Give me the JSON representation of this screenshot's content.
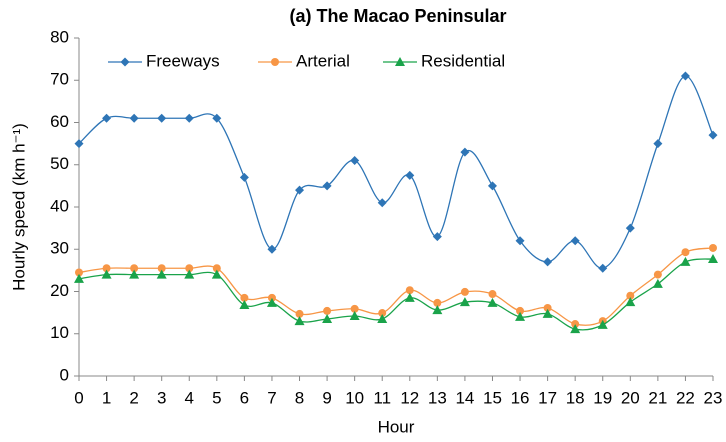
{
  "chart_data": {
    "type": "line",
    "title": "(a) The Macao Peninsular",
    "x_label": "Hour",
    "y_label": "Hourly speed (km h⁻¹)",
    "x": [
      0,
      1,
      2,
      3,
      4,
      5,
      6,
      7,
      8,
      9,
      10,
      11,
      12,
      13,
      14,
      15,
      16,
      17,
      18,
      19,
      20,
      21,
      22,
      23
    ],
    "xlim": [
      0,
      23
    ],
    "xticks": [
      0,
      1,
      2,
      3,
      4,
      5,
      6,
      7,
      8,
      9,
      10,
      11,
      12,
      13,
      14,
      15,
      16,
      17,
      18,
      19,
      20,
      21,
      22,
      23
    ],
    "ylim": [
      0,
      80
    ],
    "yticks": [
      0,
      10,
      20,
      30,
      40,
      50,
      60,
      70,
      80
    ],
    "smooth": true,
    "legend": "top",
    "series": [
      {
        "name": "Freeways",
        "color": "#2e75b6",
        "marker": "diamond",
        "values": [
          55,
          61,
          61,
          61,
          61,
          61,
          47,
          30,
          44,
          45,
          51,
          41,
          47.5,
          33,
          53,
          45,
          32,
          27,
          32,
          25.5,
          35,
          55,
          71,
          57
        ]
      },
      {
        "name": "Arterial",
        "color": "#f79646",
        "marker": "circle",
        "values": [
          24.5,
          25.5,
          25.5,
          25.5,
          25.5,
          25.5,
          18.5,
          18.5,
          14.7,
          15.4,
          15.9,
          14.9,
          20.3,
          17.3,
          19.9,
          19.4,
          15.4,
          16.1,
          12.3,
          13,
          19,
          24,
          29.3,
          30.3
        ]
      },
      {
        "name": "Residential",
        "color": "#1aa34a",
        "marker": "triangle",
        "values": [
          23,
          24,
          24,
          24,
          24,
          24,
          16.8,
          17.3,
          13,
          13.5,
          14.2,
          13.5,
          18.5,
          15.6,
          17.5,
          17.3,
          14,
          14.7,
          11.1,
          12.1,
          17.5,
          21.8,
          27,
          27.7
        ]
      }
    ]
  }
}
